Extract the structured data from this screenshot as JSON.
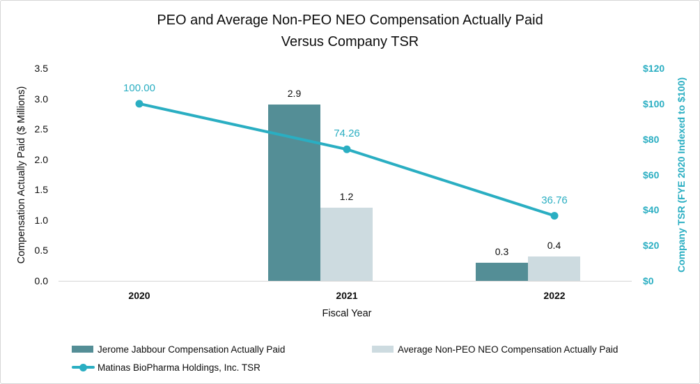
{
  "chart_data": {
    "type": "bar+line",
    "title_lines": [
      "PEO and Average Non-PEO NEO Compensation Actually Paid",
      "Versus Company TSR"
    ],
    "xlabel": "Fiscal Year",
    "categories": [
      "2020",
      "2021",
      "2022"
    ],
    "left_axis": {
      "label": "Compensation Actually Paid ($ Millions)",
      "min": 0,
      "max": 3.5,
      "tick_labels_top_to_bottom": [
        "3.5",
        "3.0",
        "2.5",
        "2.0",
        "1.5",
        "1.0",
        "0.5",
        "0.0"
      ]
    },
    "right_axis": {
      "label": "Company TSR (FYE 2020 Indexed to $100)",
      "min": 0,
      "max": 120,
      "tick_labels_top_to_bottom": [
        "$120",
        "$100",
        "$80",
        "$60",
        "$40",
        "$20",
        "$0"
      ],
      "color": "#2aaec2"
    },
    "series": [
      {
        "name": "Jerome Jabbour Compensation Actually Paid",
        "type": "bar",
        "axis": "left",
        "color": "#548e96",
        "values": [
          null,
          2.9,
          0.3
        ],
        "data_labels": [
          null,
          "2.9",
          "0.3"
        ]
      },
      {
        "name": "Average Non-PEO NEO Compensation Actually Paid",
        "type": "bar",
        "axis": "left",
        "color": "#cddbe0",
        "values": [
          null,
          1.2,
          0.4
        ],
        "data_labels": [
          null,
          "1.2",
          "0.4"
        ]
      },
      {
        "name": "Matinas BioPharma Holdings, Inc. TSR",
        "type": "line",
        "axis": "right",
        "color": "#2aaec2",
        "values": [
          100.0,
          74.26,
          36.76
        ],
        "data_labels": [
          "100.00",
          "74.26",
          "36.76"
        ]
      }
    ],
    "grid": "off",
    "legend_position": "bottom-left"
  }
}
